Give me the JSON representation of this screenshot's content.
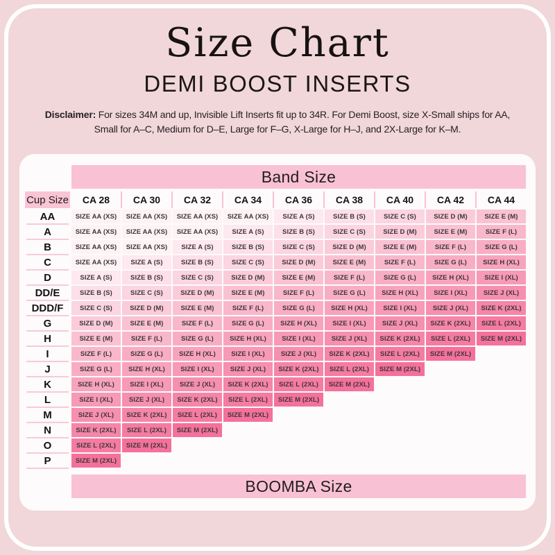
{
  "header": {
    "title": "Size Chart",
    "subtitle": "DEMI BOOST INSERTS",
    "disclaimer_label": "Disclaimer:",
    "disclaimer_body": " For sizes 34M and up, Invisible Lift Inserts fit up to 34R. For Demi Boost, size X-Small ships for AA, Small for A–C, Medium for D–E, Large for F–G, X-Large for H–J, and 2X-Large for K–M."
  },
  "colors": {
    "page_bg": "#f1d7d9",
    "card_bg": "#fdfbfb",
    "band_pink": "#f9c1d4",
    "cup_header_pink": "#f8c5d5",
    "row_separator": "#f6cbd8"
  },
  "chart_data": {
    "type": "table",
    "band_header": "Band Size",
    "footer_label": "BOOMBA Size",
    "corner_label": "Cup Size",
    "columns": [
      "CA 28",
      "CA 30",
      "CA 32",
      "CA 34",
      "CA 36",
      "CA 38",
      "CA 40",
      "CA 42",
      "CA 44"
    ],
    "row_labels": [
      "AA",
      "A",
      "B",
      "C",
      "D",
      "DD/E",
      "DDD/F",
      "G",
      "H",
      "I",
      "J",
      "K",
      "L",
      "M",
      "N",
      "O",
      "P"
    ],
    "legend": {
      "AA": {
        "label": "SIZE AA (XS)",
        "color": "#fdf3f5"
      },
      "A": {
        "label": "SIZE A (S)",
        "color": "#fde9ef"
      },
      "B": {
        "label": "SIZE B (S)",
        "color": "#fcdfe8"
      },
      "C": {
        "label": "SIZE C (S)",
        "color": "#fbd5e1"
      },
      "D": {
        "label": "SIZE D (M)",
        "color": "#fbcbda"
      },
      "E": {
        "label": "SIZE E (M)",
        "color": "#fac1d3"
      },
      "F": {
        "label": "SIZE F (L)",
        "color": "#f9b7cc"
      },
      "G": {
        "label": "SIZE G (L)",
        "color": "#f9adc5"
      },
      "H": {
        "label": "SIZE H (XL)",
        "color": "#f8a3be"
      },
      "I": {
        "label": "SIZE I (XL)",
        "color": "#f799b7"
      },
      "J": {
        "label": "SIZE J (XL)",
        "color": "#f68fb0"
      },
      "K": {
        "label": "SIZE K (2XL)",
        "color": "#f585a9"
      },
      "L": {
        "label": "SIZE L (2XL)",
        "color": "#f57ba2"
      },
      "M": {
        "label": "SIZE M (2XL)",
        "color": "#f4719b"
      }
    },
    "cells": [
      [
        "AA",
        "AA",
        "AA",
        "AA",
        "A",
        "B",
        "C",
        "D",
        "E"
      ],
      [
        "AA",
        "AA",
        "AA",
        "A",
        "B",
        "C",
        "D",
        "E",
        "F"
      ],
      [
        "AA",
        "AA",
        "A",
        "B",
        "C",
        "D",
        "E",
        "F",
        "G"
      ],
      [
        "AA",
        "A",
        "B",
        "C",
        "D",
        "E",
        "F",
        "G",
        "H"
      ],
      [
        "A",
        "B",
        "C",
        "D",
        "E",
        "F",
        "G",
        "H",
        "I"
      ],
      [
        "B",
        "C",
        "D",
        "E",
        "F",
        "G",
        "H",
        "I",
        "J"
      ],
      [
        "C",
        "D",
        "E",
        "F",
        "G",
        "H",
        "I",
        "J",
        "K"
      ],
      [
        "D",
        "E",
        "F",
        "G",
        "H",
        "I",
        "J",
        "K",
        "L"
      ],
      [
        "E",
        "F",
        "G",
        "H",
        "I",
        "J",
        "K",
        "L",
        "M"
      ],
      [
        "F",
        "G",
        "H",
        "I",
        "J",
        "K",
        "L",
        "M",
        null
      ],
      [
        "G",
        "H",
        "I",
        "J",
        "K",
        "L",
        "M",
        null,
        null
      ],
      [
        "H",
        "I",
        "J",
        "K",
        "L",
        "M",
        null,
        null,
        null
      ],
      [
        "I",
        "J",
        "K",
        "L",
        "M",
        null,
        null,
        null,
        null
      ],
      [
        "J",
        "K",
        "L",
        "M",
        null,
        null,
        null,
        null,
        null
      ],
      [
        "K",
        "L",
        "M",
        null,
        null,
        null,
        null,
        null,
        null
      ],
      [
        "L",
        "M",
        null,
        null,
        null,
        null,
        null,
        null,
        null
      ],
      [
        "M",
        null,
        null,
        null,
        null,
        null,
        null,
        null,
        null
      ]
    ]
  }
}
